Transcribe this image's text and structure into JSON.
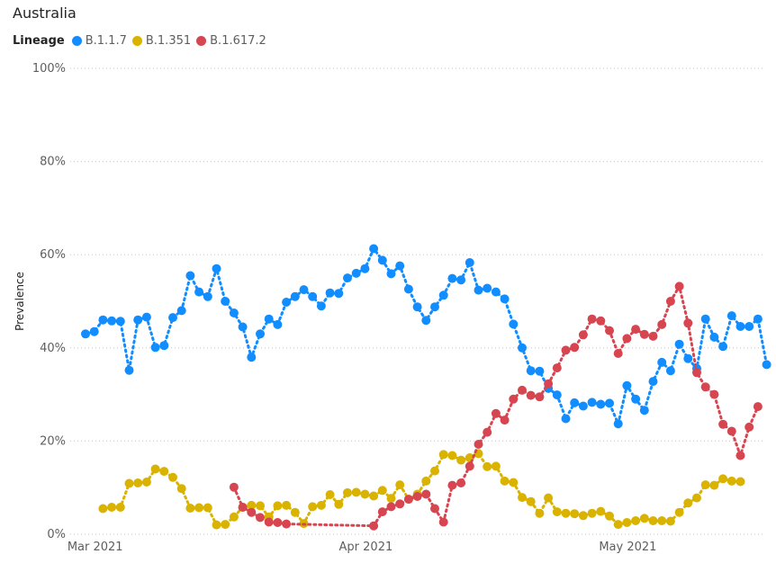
{
  "chart_data": {
    "type": "line",
    "title": "Australia",
    "legend_title": "Lineage",
    "ylabel": "Prevalence",
    "xlabel": "",
    "ylim": [
      0,
      100
    ],
    "yticks": [
      "0%",
      "20%",
      "40%",
      "60%",
      "80%",
      "100%"
    ],
    "yticks_values": [
      0,
      20,
      40,
      60,
      80,
      100
    ],
    "x_start": "2021-02-28",
    "xlim": [
      "2021-02-28",
      "2021-05-31"
    ],
    "xticks": [
      {
        "label": "Mar 2021",
        "date": "2021-03-01"
      },
      {
        "label": "Apr 2021",
        "date": "2021-04-01"
      },
      {
        "label": "May 2021",
        "date": "2021-05-01"
      }
    ],
    "legend_position": "top-left",
    "grid": true,
    "line_style": "dotted",
    "series": [
      {
        "name": "B.1.1.7",
        "color": "#118DFF",
        "points": [
          [
            "2021-02-28",
            43
          ],
          [
            "2021-03-01",
            43.5
          ],
          [
            "2021-03-02",
            46
          ],
          [
            "2021-03-03",
            45.8
          ],
          [
            "2021-03-04",
            45.7
          ],
          [
            "2021-03-05",
            35.2
          ],
          [
            "2021-03-06",
            46
          ],
          [
            "2021-03-07",
            46.6
          ],
          [
            "2021-03-08",
            40.1
          ],
          [
            "2021-03-09",
            40.5
          ],
          [
            "2021-03-10",
            46.5
          ],
          [
            "2021-03-11",
            48
          ],
          [
            "2021-03-12",
            55.5
          ],
          [
            "2021-03-13",
            52
          ],
          [
            "2021-03-14",
            51
          ],
          [
            "2021-03-15",
            57
          ],
          [
            "2021-03-16",
            50
          ],
          [
            "2021-03-17",
            47.5
          ],
          [
            "2021-03-18",
            44.5
          ],
          [
            "2021-03-19",
            38
          ],
          [
            "2021-03-20",
            43
          ],
          [
            "2021-03-21",
            46.2
          ],
          [
            "2021-03-22",
            45
          ],
          [
            "2021-03-23",
            49.8
          ],
          [
            "2021-03-24",
            51
          ],
          [
            "2021-03-25",
            52.5
          ],
          [
            "2021-03-26",
            51
          ],
          [
            "2021-03-27",
            49
          ],
          [
            "2021-03-28",
            51.8
          ],
          [
            "2021-03-29",
            51.7
          ],
          [
            "2021-03-30",
            55
          ],
          [
            "2021-03-31",
            56
          ],
          [
            "2021-04-01",
            57
          ],
          [
            "2021-04-02",
            61.3
          ],
          [
            "2021-04-03",
            58.8
          ],
          [
            "2021-04-04",
            55.9
          ],
          [
            "2021-04-05",
            57.6
          ],
          [
            "2021-04-06",
            52.6
          ],
          [
            "2021-04-07",
            48.8
          ],
          [
            "2021-04-08",
            45.9
          ],
          [
            "2021-04-09",
            48.8
          ],
          [
            "2021-04-10",
            51.3
          ],
          [
            "2021-04-11",
            54.9
          ],
          [
            "2021-04-12",
            54.6
          ],
          [
            "2021-04-13",
            58.3
          ],
          [
            "2021-04-14",
            52.4
          ],
          [
            "2021-04-15",
            52.8
          ],
          [
            "2021-04-16",
            52
          ],
          [
            "2021-04-17",
            50.5
          ],
          [
            "2021-04-18",
            45.1
          ],
          [
            "2021-04-19",
            40
          ],
          [
            "2021-04-20",
            35.1
          ],
          [
            "2021-04-21",
            35
          ],
          [
            "2021-04-22",
            31.3
          ],
          [
            "2021-04-23",
            29.9
          ],
          [
            "2021-04-24",
            24.8
          ],
          [
            "2021-04-25",
            28.2
          ],
          [
            "2021-04-26",
            27.5
          ],
          [
            "2021-04-27",
            28.3
          ],
          [
            "2021-04-28",
            27.9
          ],
          [
            "2021-04-29",
            28.1
          ],
          [
            "2021-04-30",
            23.7
          ],
          [
            "2021-05-01",
            31.9
          ],
          [
            "2021-05-02",
            29
          ],
          [
            "2021-05-03",
            26.6
          ],
          [
            "2021-05-04",
            32.8
          ],
          [
            "2021-05-05",
            36.9
          ],
          [
            "2021-05-06",
            35.1
          ],
          [
            "2021-05-07",
            40.8
          ],
          [
            "2021-05-08",
            37.7
          ],
          [
            "2021-05-09",
            35.6
          ],
          [
            "2021-05-10",
            46.2
          ],
          [
            "2021-05-11",
            42.3
          ],
          [
            "2021-05-12",
            40.3
          ],
          [
            "2021-05-13",
            46.9
          ],
          [
            "2021-05-14",
            44.6
          ],
          [
            "2021-05-15",
            44.6
          ],
          [
            "2021-05-16",
            46.2
          ],
          [
            "2021-05-17",
            36.4
          ]
        ]
      },
      {
        "name": "B.1.351",
        "color": "#D9B300",
        "points": [
          [
            "2021-03-02",
            5.5
          ],
          [
            "2021-03-03",
            5.8
          ],
          [
            "2021-03-04",
            5.8
          ],
          [
            "2021-03-05",
            10.9
          ],
          [
            "2021-03-06",
            11
          ],
          [
            "2021-03-07",
            11.2
          ],
          [
            "2021-03-08",
            14
          ],
          [
            "2021-03-09",
            13.5
          ],
          [
            "2021-03-10",
            12.2
          ],
          [
            "2021-03-11",
            9.8
          ],
          [
            "2021-03-12",
            5.6
          ],
          [
            "2021-03-13",
            5.7
          ],
          [
            "2021-03-14",
            5.7
          ],
          [
            "2021-03-15",
            2
          ],
          [
            "2021-03-16",
            2.1
          ],
          [
            "2021-03-17",
            3.7
          ],
          [
            "2021-03-18",
            5.8
          ],
          [
            "2021-03-19",
            6.2
          ],
          [
            "2021-03-20",
            6.1
          ],
          [
            "2021-03-21",
            3.7
          ],
          [
            "2021-03-22",
            6.1
          ],
          [
            "2021-03-23",
            6.2
          ],
          [
            "2021-03-24",
            4.7
          ],
          [
            "2021-03-25",
            2.3
          ],
          [
            "2021-03-26",
            5.9
          ],
          [
            "2021-03-27",
            6.2
          ],
          [
            "2021-03-28",
            8.5
          ],
          [
            "2021-03-29",
            6.4
          ],
          [
            "2021-03-30",
            8.9
          ],
          [
            "2021-03-31",
            9
          ],
          [
            "2021-04-01",
            8.6
          ],
          [
            "2021-04-02",
            8.2
          ],
          [
            "2021-04-03",
            9.4
          ],
          [
            "2021-04-04",
            7.7
          ],
          [
            "2021-04-05",
            10.6
          ],
          [
            "2021-04-06",
            7.5
          ],
          [
            "2021-04-07",
            8.6
          ],
          [
            "2021-04-08",
            11.4
          ],
          [
            "2021-04-09",
            13.6
          ],
          [
            "2021-04-10",
            17.1
          ],
          [
            "2021-04-11",
            16.9
          ],
          [
            "2021-04-12",
            15.9
          ],
          [
            "2021-04-13",
            16.4
          ],
          [
            "2021-04-14",
            17.3
          ],
          [
            "2021-04-15",
            14.5
          ],
          [
            "2021-04-16",
            14.6
          ],
          [
            "2021-04-17",
            11.4
          ],
          [
            "2021-04-18",
            11.1
          ],
          [
            "2021-04-19",
            7.9
          ],
          [
            "2021-04-20",
            7
          ],
          [
            "2021-04-21",
            4.5
          ],
          [
            "2021-04-22",
            7.8
          ],
          [
            "2021-04-23",
            4.8
          ],
          [
            "2021-04-24",
            4.5
          ],
          [
            "2021-04-25",
            4.4
          ],
          [
            "2021-04-26",
            4
          ],
          [
            "2021-04-27",
            4.5
          ],
          [
            "2021-04-28",
            4.9
          ],
          [
            "2021-04-29",
            3.9
          ],
          [
            "2021-04-30",
            2.1
          ],
          [
            "2021-05-01",
            2.5
          ],
          [
            "2021-05-02",
            2.9
          ],
          [
            "2021-05-03",
            3.4
          ],
          [
            "2021-05-04",
            2.9
          ],
          [
            "2021-05-05",
            2.9
          ],
          [
            "2021-05-06",
            2.8
          ],
          [
            "2021-05-07",
            4.7
          ],
          [
            "2021-05-08",
            6.7
          ],
          [
            "2021-05-09",
            7.8
          ],
          [
            "2021-05-10",
            10.6
          ],
          [
            "2021-05-11",
            10.5
          ],
          [
            "2021-05-12",
            11.9
          ],
          [
            "2021-05-13",
            11.4
          ],
          [
            "2021-05-14",
            11.3
          ]
        ]
      },
      {
        "name": "B.1.617.2",
        "color": "#D64550",
        "points": [
          [
            "2021-03-17",
            10.1
          ],
          [
            "2021-03-18",
            5.8
          ],
          [
            "2021-03-19",
            4.7
          ],
          [
            "2021-03-20",
            3.6
          ],
          [
            "2021-03-21",
            2.6
          ],
          [
            "2021-03-22",
            2.5
          ],
          [
            "2021-03-23",
            2.2
          ],
          [
            "2021-04-02",
            1.8
          ],
          [
            "2021-04-03",
            4.8
          ],
          [
            "2021-04-04",
            5.9
          ],
          [
            "2021-04-05",
            6.5
          ],
          [
            "2021-04-06",
            7.5
          ],
          [
            "2021-04-07",
            8.1
          ],
          [
            "2021-04-08",
            8.6
          ],
          [
            "2021-04-09",
            5.5
          ],
          [
            "2021-04-10",
            2.6
          ],
          [
            "2021-04-11",
            10.5
          ],
          [
            "2021-04-12",
            11
          ],
          [
            "2021-04-13",
            14.6
          ],
          [
            "2021-04-14",
            19.3
          ],
          [
            "2021-04-15",
            21.9
          ],
          [
            "2021-04-16",
            25.9
          ],
          [
            "2021-04-17",
            24.5
          ],
          [
            "2021-04-18",
            29
          ],
          [
            "2021-04-19",
            30.9
          ],
          [
            "2021-04-20",
            29.8
          ],
          [
            "2021-04-21",
            29.5
          ],
          [
            "2021-04-22",
            32.3
          ],
          [
            "2021-04-23",
            35.7
          ],
          [
            "2021-04-24",
            39.5
          ],
          [
            "2021-04-25",
            40.1
          ],
          [
            "2021-04-26",
            42.8
          ],
          [
            "2021-04-27",
            46.2
          ],
          [
            "2021-04-28",
            45.8
          ],
          [
            "2021-04-29",
            43.7
          ],
          [
            "2021-04-30",
            38.8
          ],
          [
            "2021-05-01",
            42
          ],
          [
            "2021-05-02",
            44
          ],
          [
            "2021-05-03",
            42.9
          ],
          [
            "2021-05-04",
            42.5
          ],
          [
            "2021-05-05",
            45
          ],
          [
            "2021-05-06",
            50
          ],
          [
            "2021-05-07",
            53.2
          ],
          [
            "2021-05-08",
            45.3
          ],
          [
            "2021-05-09",
            34.7
          ],
          [
            "2021-05-10",
            31.6
          ],
          [
            "2021-05-11",
            30
          ],
          [
            "2021-05-12",
            23.6
          ],
          [
            "2021-05-13",
            22.1
          ],
          [
            "2021-05-14",
            16.9
          ],
          [
            "2021-05-15",
            23
          ],
          [
            "2021-05-16",
            27.4
          ]
        ]
      }
    ]
  }
}
